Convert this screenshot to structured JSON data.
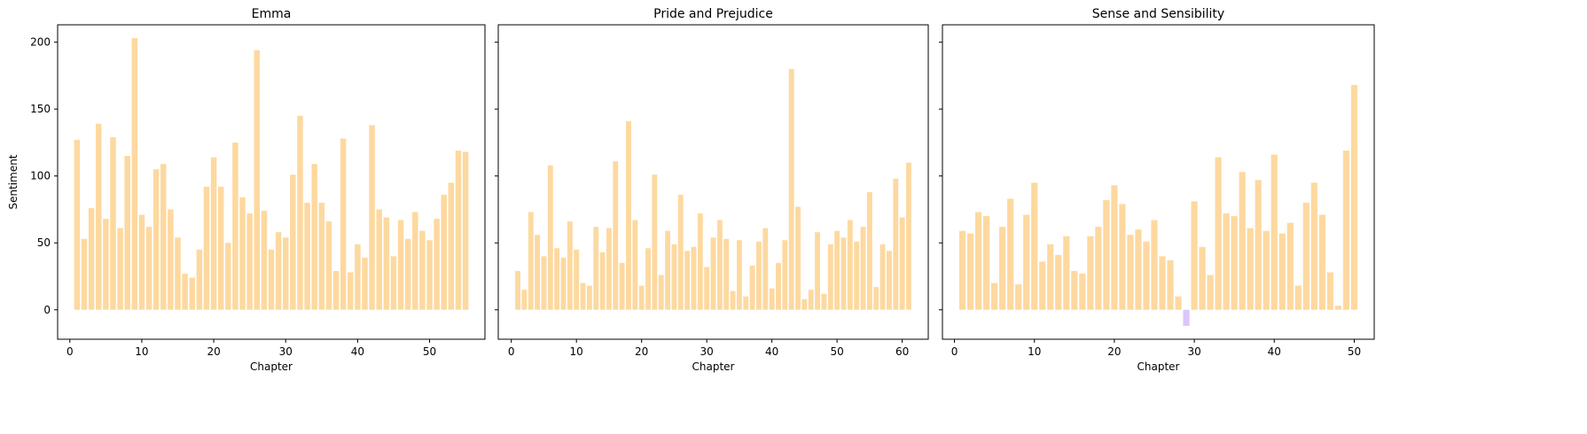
{
  "chart_data": [
    {
      "type": "bar",
      "title": "Emma",
      "xlabel": "Chapter",
      "ylabel": "Sentiment",
      "xlim": [
        -1.7,
        57.7
      ],
      "ylim": [
        -22,
        213
      ],
      "xticks": [
        0,
        10,
        20,
        30,
        40,
        50
      ],
      "yticks": [
        0,
        50,
        100,
        150,
        200
      ],
      "x": [
        1,
        2,
        3,
        4,
        5,
        6,
        7,
        8,
        9,
        10,
        11,
        12,
        13,
        14,
        15,
        16,
        17,
        18,
        19,
        20,
        21,
        22,
        23,
        24,
        25,
        26,
        27,
        28,
        29,
        30,
        31,
        32,
        33,
        34,
        35,
        36,
        37,
        38,
        39,
        40,
        41,
        42,
        43,
        44,
        45,
        46,
        47,
        48,
        49,
        50,
        51,
        52,
        53,
        54,
        55
      ],
      "values": [
        127,
        53,
        76,
        139,
        68,
        129,
        61,
        115,
        203,
        71,
        62,
        105,
        109,
        75,
        54,
        27,
        24,
        45,
        92,
        114,
        92,
        50,
        125,
        84,
        72,
        194,
        74,
        45,
        58,
        54,
        101,
        145,
        80,
        109,
        80,
        66,
        29,
        128,
        28,
        49,
        39,
        138,
        75,
        69,
        40,
        67,
        53,
        73,
        59,
        52,
        68,
        86,
        95,
        119,
        118
      ],
      "positive_color": "#fdd9a0",
      "negative_color": "#dcc6fb"
    },
    {
      "type": "bar",
      "title": "Pride and Prejudice",
      "xlabel": "Chapter",
      "ylabel": "",
      "xlim": [
        -2.0,
        64.0
      ],
      "ylim": [
        -22,
        213
      ],
      "xticks": [
        0,
        10,
        20,
        30,
        40,
        50,
        60
      ],
      "yticks": [
        0,
        50,
        100,
        150,
        200
      ],
      "x": [
        1,
        2,
        3,
        4,
        5,
        6,
        7,
        8,
        9,
        10,
        11,
        12,
        13,
        14,
        15,
        16,
        17,
        18,
        19,
        20,
        21,
        22,
        23,
        24,
        25,
        26,
        27,
        28,
        29,
        30,
        31,
        32,
        33,
        34,
        35,
        36,
        37,
        38,
        39,
        40,
        41,
        42,
        43,
        44,
        45,
        46,
        47,
        48,
        49,
        50,
        51,
        52,
        53,
        54,
        55,
        56,
        57,
        58,
        59,
        60,
        61
      ],
      "values": [
        29,
        15,
        73,
        56,
        40,
        108,
        46,
        39,
        66,
        45,
        20,
        18,
        62,
        43,
        61,
        111,
        35,
        141,
        67,
        18,
        46,
        101,
        26,
        59,
        49,
        86,
        44,
        47,
        72,
        32,
        54,
        67,
        53,
        14,
        52,
        10,
        33,
        51,
        61,
        16,
        35,
        52,
        180,
        77,
        8,
        15,
        58,
        12,
        49,
        59,
        54,
        67,
        51,
        62,
        88,
        17,
        49,
        44,
        98,
        69,
        110
      ],
      "positive_color": "#fdd9a0",
      "negative_color": "#dcc6fb"
    },
    {
      "type": "bar",
      "title": "Sense and Sensibility",
      "xlabel": "Chapter",
      "ylabel": "",
      "xlim": [
        -1.5,
        52.5
      ],
      "ylim": [
        -22,
        213
      ],
      "xticks": [
        0,
        10,
        20,
        30,
        40,
        50
      ],
      "yticks": [
        0,
        50,
        100,
        150,
        200
      ],
      "x": [
        1,
        2,
        3,
        4,
        5,
        6,
        7,
        8,
        9,
        10,
        11,
        12,
        13,
        14,
        15,
        16,
        17,
        18,
        19,
        20,
        21,
        22,
        23,
        24,
        25,
        26,
        27,
        28,
        29,
        30,
        31,
        32,
        33,
        34,
        35,
        36,
        37,
        38,
        39,
        40,
        41,
        42,
        43,
        44,
        45,
        46,
        47,
        48,
        49,
        50
      ],
      "values": [
        59,
        57,
        73,
        70,
        20,
        62,
        83,
        19,
        71,
        95,
        36,
        49,
        41,
        55,
        29,
        27,
        55,
        62,
        82,
        93,
        79,
        56,
        60,
        51,
        67,
        40,
        37,
        10,
        -12,
        81,
        47,
        26,
        114,
        72,
        70,
        103,
        61,
        97,
        59,
        116,
        57,
        65,
        18,
        80,
        95,
        71,
        28,
        3,
        119,
        168
      ],
      "positive_color": "#fdd9a0",
      "negative_color": "#dcc6fb"
    }
  ]
}
